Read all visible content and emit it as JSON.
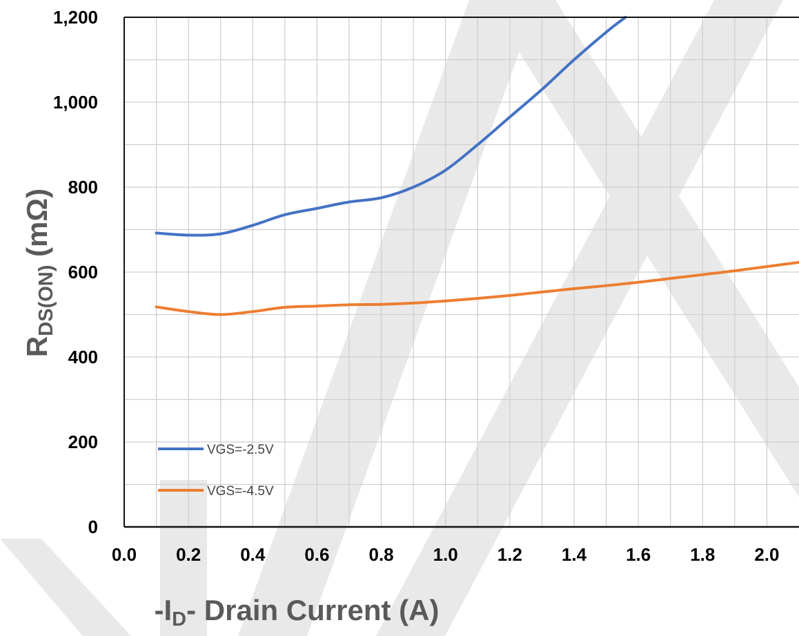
{
  "chart_data": {
    "type": "line",
    "xlabel_prefix": "-I",
    "xlabel_sub": "D",
    "xlabel_suffix": "- Drain Current (A)",
    "ylabel_main": "R",
    "ylabel_sub": "DS(ON)",
    "ylabel_unit": " (mΩ)",
    "xlim": [
      0.0,
      2.1
    ],
    "ylim": [
      0,
      1200
    ],
    "x_ticks": [
      "0.0",
      "0.2",
      "0.4",
      "0.6",
      "0.8",
      "1.0",
      "1.2",
      "1.4",
      "1.6",
      "1.8",
      "2.0"
    ],
    "x_tick_values": [
      0.0,
      0.2,
      0.4,
      0.6,
      0.8,
      1.0,
      1.2,
      1.4,
      1.6,
      1.8,
      2.0
    ],
    "y_ticks": [
      "0",
      "200",
      "400",
      "600",
      "800",
      "1,000",
      "1,200"
    ],
    "y_tick_values": [
      0,
      200,
      400,
      600,
      800,
      1000,
      1200
    ],
    "grid": true,
    "legend_position": "bottom-left",
    "series": [
      {
        "name": "VGS=-2.5V",
        "color": "#4472c4",
        "x": [
          0.1,
          0.2,
          0.3,
          0.4,
          0.5,
          0.6,
          0.7,
          0.8,
          0.9,
          1.0,
          1.1,
          1.2,
          1.3,
          1.4,
          1.5,
          1.56
        ],
        "y": [
          692,
          687,
          690,
          710,
          735,
          750,
          765,
          775,
          800,
          840,
          900,
          965,
          1030,
          1100,
          1165,
          1200
        ]
      },
      {
        "name": "VGS=-4.5V",
        "color": "#ed7d31",
        "x": [
          0.1,
          0.2,
          0.3,
          0.4,
          0.5,
          0.6,
          0.7,
          0.8,
          0.9,
          1.0,
          1.1,
          1.2,
          1.3,
          1.4,
          1.5,
          1.6,
          1.7,
          1.8,
          1.9,
          2.0,
          2.1
        ],
        "y": [
          518,
          507,
          500,
          507,
          517,
          520,
          523,
          524,
          527,
          532,
          538,
          545,
          553,
          561,
          568,
          576,
          585,
          594,
          603,
          613,
          623
        ]
      }
    ]
  }
}
